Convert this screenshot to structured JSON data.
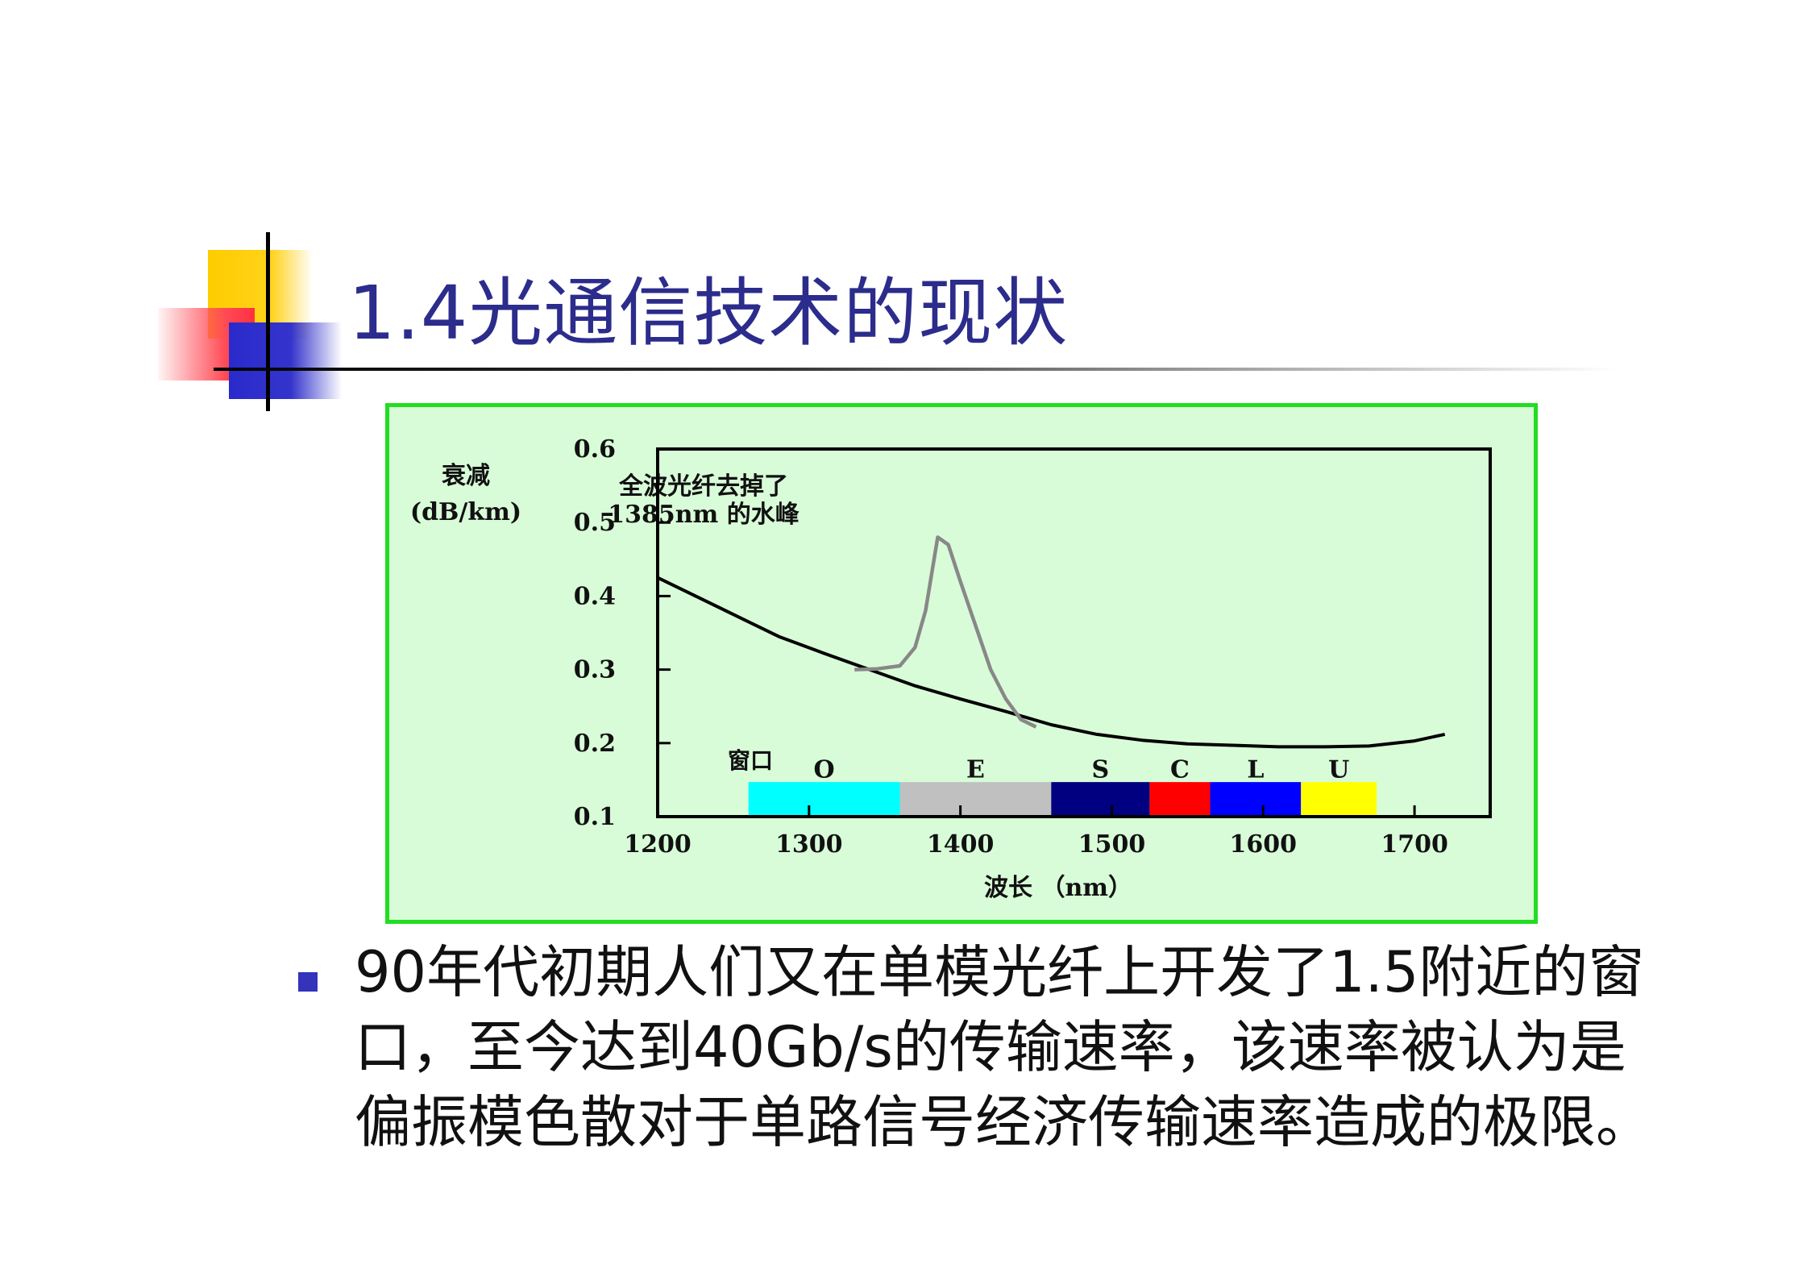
{
  "slide": {
    "title": "1.4光通信技术的现状",
    "bullet_text": "90年代初期人们又在单模光纤上开发了1.5附近的窗口，至今达到40Gb/s的传输速率，该速率被认为是偏振模色散对于单路信号经济传输速率造成的极限。"
  },
  "chart_data": {
    "type": "line",
    "ylabel_line1": "衰减",
    "ylabel_line2": "(dB/km)",
    "xlabel": "波长 （nm）",
    "annotation_line1": "全波光纤去掉了",
    "annotation_line2": "1385nm 的水峰",
    "window_label": "窗口",
    "xlim": [
      1200,
      1750
    ],
    "ylim": [
      0.1,
      0.6
    ],
    "x_ticks": [
      1200,
      1300,
      1400,
      1500,
      1600,
      1700
    ],
    "y_ticks": [
      0.1,
      0.2,
      0.3,
      0.4,
      0.5,
      0.6
    ],
    "series": [
      {
        "color": "#000000",
        "points": [
          [
            1200,
            0.425
          ],
          [
            1220,
            0.405
          ],
          [
            1250,
            0.375
          ],
          [
            1280,
            0.345
          ],
          [
            1310,
            0.322
          ],
          [
            1340,
            0.3
          ],
          [
            1370,
            0.278
          ],
          [
            1400,
            0.26
          ],
          [
            1430,
            0.243
          ],
          [
            1460,
            0.225
          ],
          [
            1490,
            0.212
          ],
          [
            1520,
            0.204
          ],
          [
            1550,
            0.199
          ],
          [
            1580,
            0.197
          ],
          [
            1610,
            0.195
          ],
          [
            1640,
            0.195
          ],
          [
            1670,
            0.196
          ],
          [
            1700,
            0.203
          ],
          [
            1720,
            0.212
          ]
        ]
      },
      {
        "color": "#888888",
        "points": [
          [
            1330,
            0.3
          ],
          [
            1345,
            0.301
          ],
          [
            1360,
            0.305
          ],
          [
            1370,
            0.33
          ],
          [
            1377,
            0.38
          ],
          [
            1385,
            0.48
          ],
          [
            1392,
            0.47
          ],
          [
            1400,
            0.42
          ],
          [
            1410,
            0.36
          ],
          [
            1420,
            0.3
          ],
          [
            1430,
            0.26
          ],
          [
            1440,
            0.232
          ],
          [
            1450,
            0.222
          ]
        ]
      }
    ],
    "bands": [
      {
        "label": "O",
        "start": 1260,
        "end": 1360,
        "color": "#00ffff"
      },
      {
        "label": "E",
        "start": 1360,
        "end": 1460,
        "color": "#c0c0c0"
      },
      {
        "label": "S",
        "start": 1460,
        "end": 1525,
        "color": "#000080"
      },
      {
        "label": "C",
        "start": 1525,
        "end": 1565,
        "color": "#ff0000"
      },
      {
        "label": "L",
        "start": 1565,
        "end": 1625,
        "color": "#0000ff"
      },
      {
        "label": "U",
        "start": 1625,
        "end": 1675,
        "color": "#ffff00"
      }
    ]
  }
}
